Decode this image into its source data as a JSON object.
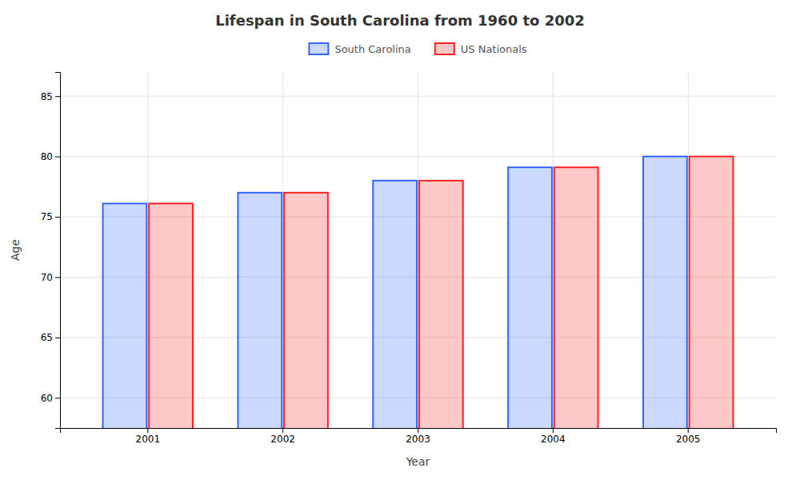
{
  "chart_data": {
    "type": "bar",
    "title": "Lifespan in South Carolina from 1960 to 2002",
    "xlabel": "Year",
    "ylabel": "Age",
    "categories": [
      "2001",
      "2002",
      "2003",
      "2004",
      "2005"
    ],
    "series": [
      {
        "name": "South Carolina",
        "color": "#3366ff",
        "values": [
          76.1,
          77.0,
          78.0,
          79.1,
          80.0
        ]
      },
      {
        "name": "US Nationals",
        "color": "#ff2222",
        "values": [
          76.1,
          77.0,
          78.0,
          79.1,
          80.0
        ]
      }
    ],
    "ylim": [
      57.5,
      87
    ],
    "yticks": [
      60,
      65,
      70,
      75,
      80,
      85
    ],
    "grid": true,
    "legend": "top"
  }
}
